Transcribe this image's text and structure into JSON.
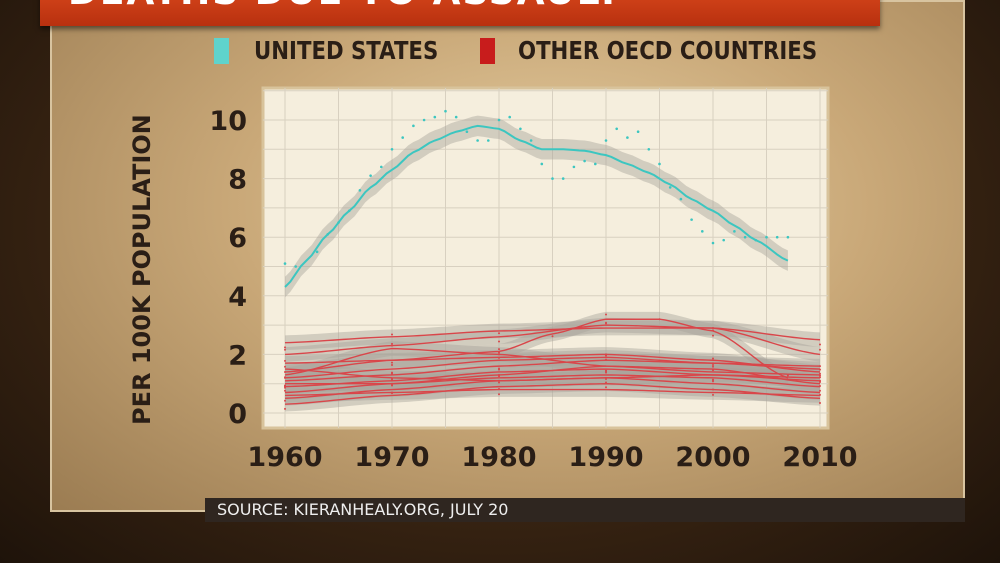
{
  "chart_data": {
    "type": "line",
    "title": "DEATHS DUE TO ASSAULT",
    "ylabel": "PER 100K POPULATION",
    "xlabel": "",
    "xlim": [
      1959,
      2011
    ],
    "ylim": [
      -0.5,
      10.8
    ],
    "xticks": [
      1960,
      1970,
      1980,
      1990,
      2000,
      2010
    ],
    "yticks": [
      0,
      2,
      4,
      6,
      8,
      10
    ],
    "grid": true,
    "legend_position": "top",
    "colors": {
      "us": "#3cc6c0",
      "oecd": "#d9464a",
      "band": "#a9a39c"
    },
    "series": [
      {
        "name": "UNITED STATES",
        "x": [
          1960,
          1962,
          1964,
          1966,
          1968,
          1970,
          1972,
          1974,
          1976,
          1978,
          1980,
          1982,
          1984,
          1986,
          1988,
          1990,
          1992,
          1994,
          1996,
          1998,
          2000,
          2002,
          2004,
          2007
        ],
        "y": [
          4.3,
          5.2,
          6.1,
          6.9,
          7.7,
          8.3,
          8.9,
          9.3,
          9.6,
          9.8,
          9.7,
          9.3,
          9.0,
          9.0,
          8.95,
          8.8,
          8.5,
          8.2,
          7.8,
          7.3,
          6.9,
          6.4,
          5.9,
          5.2
        ],
        "points_x": [
          1960,
          1961,
          1963,
          1964,
          1965,
          1966,
          1967,
          1968,
          1969,
          1970,
          1971,
          1972,
          1973,
          1974,
          1975,
          1976,
          1977,
          1978,
          1979,
          1980,
          1981,
          1982,
          1983,
          1984,
          1985,
          1986,
          1987,
          1988,
          1989,
          1990,
          1991,
          1992,
          1993,
          1994,
          1995,
          1996,
          1997,
          1998,
          1999,
          2000,
          2001,
          2002,
          2003,
          2004,
          2005,
          2006,
          2007
        ],
        "points_y": [
          5.1,
          5.0,
          5.5,
          6.1,
          6.5,
          6.9,
          7.6,
          8.1,
          8.4,
          9.0,
          9.4,
          9.8,
          10.0,
          10.1,
          10.3,
          10.1,
          9.6,
          9.3,
          9.3,
          10.0,
          10.1,
          9.7,
          9.3,
          8.5,
          8.0,
          8.0,
          8.4,
          8.6,
          8.5,
          9.3,
          9.7,
          9.4,
          9.6,
          9.0,
          8.5,
          7.7,
          7.3,
          6.6,
          6.2,
          5.8,
          5.9,
          6.2,
          6.0,
          5.9,
          6.0,
          6.0,
          6.0
        ]
      },
      {
        "name": "OTHER OECD COUNTRIES",
        "lines": [
          {
            "x": [
              1960,
              1970,
              1980,
              1990,
              2000,
              2010
            ],
            "y": [
              2.4,
              2.6,
              2.8,
              2.9,
              2.9,
              2.5
            ]
          },
          {
            "x": [
              1960,
              1970,
              1980,
              1985,
              1990,
              1995,
              2000,
              2007
            ],
            "y": [
              1.4,
              1.8,
              2.1,
              2.7,
              3.2,
              3.2,
              2.8,
              1.2
            ]
          },
          {
            "x": [
              1960,
              1970,
              1980,
              1990,
              2000,
              2010
            ],
            "y": [
              2.0,
              2.3,
              2.6,
              3.0,
              2.9,
              2.0
            ]
          },
          {
            "x": [
              1960,
              1970,
              1980,
              1990,
              2000,
              2010
            ],
            "y": [
              1.3,
              2.2,
              2.0,
              1.6,
              1.4,
              1.3
            ]
          },
          {
            "x": [
              1960,
              1970,
              1980,
              1990,
              2000,
              2010
            ],
            "y": [
              1.7,
              1.8,
              1.9,
              2.0,
              1.8,
              1.4
            ]
          },
          {
            "x": [
              1960,
              1970,
              1980,
              1990,
              2000,
              2010
            ],
            "y": [
              1.1,
              1.3,
              1.6,
              1.8,
              1.7,
              1.5
            ]
          },
          {
            "x": [
              1960,
              1970,
              1980,
              1990,
              2000,
              2010
            ],
            "y": [
              0.9,
              1.1,
              1.4,
              1.5,
              1.3,
              1.1
            ]
          },
          {
            "x": [
              1960,
              1970,
              1980,
              1990,
              2000,
              2010
            ],
            "y": [
              0.7,
              1.0,
              1.2,
              1.3,
              1.2,
              0.9
            ]
          },
          {
            "x": [
              1960,
              1970,
              1980,
              1990,
              2000,
              2010
            ],
            "y": [
              0.5,
              0.8,
              1.1,
              1.2,
              1.0,
              0.7
            ]
          },
          {
            "x": [
              1960,
              1970,
              1980,
              1990,
              2000,
              2010
            ],
            "y": [
              1.5,
              1.2,
              1.1,
              1.2,
              1.3,
              1.2
            ]
          },
          {
            "x": [
              1960,
              1970,
              1980,
              1990,
              2000,
              2010
            ],
            "y": [
              0.3,
              0.6,
              0.9,
              1.0,
              0.8,
              0.5
            ]
          },
          {
            "x": [
              1960,
              1970,
              1980,
              1990,
              2000,
              2010
            ],
            "y": [
              1.2,
              1.5,
              1.8,
              1.9,
              1.7,
              1.6
            ]
          },
          {
            "x": [
              1960,
              1970,
              1980,
              1990,
              2000,
              2010
            ],
            "y": [
              0.6,
              0.7,
              0.8,
              0.8,
              0.7,
              0.6
            ]
          },
          {
            "x": [
              1960,
              1970,
              1980,
              1990,
              2000,
              2010
            ],
            "y": [
              1.0,
              1.0,
              1.3,
              1.6,
              1.5,
              1.0
            ]
          }
        ]
      }
    ]
  },
  "legend": {
    "us": "UNITED STATES",
    "oecd": "OTHER OECD COUNTRIES"
  },
  "source": "SOURCE: KIERANHEALY.ORG, JULY 20"
}
